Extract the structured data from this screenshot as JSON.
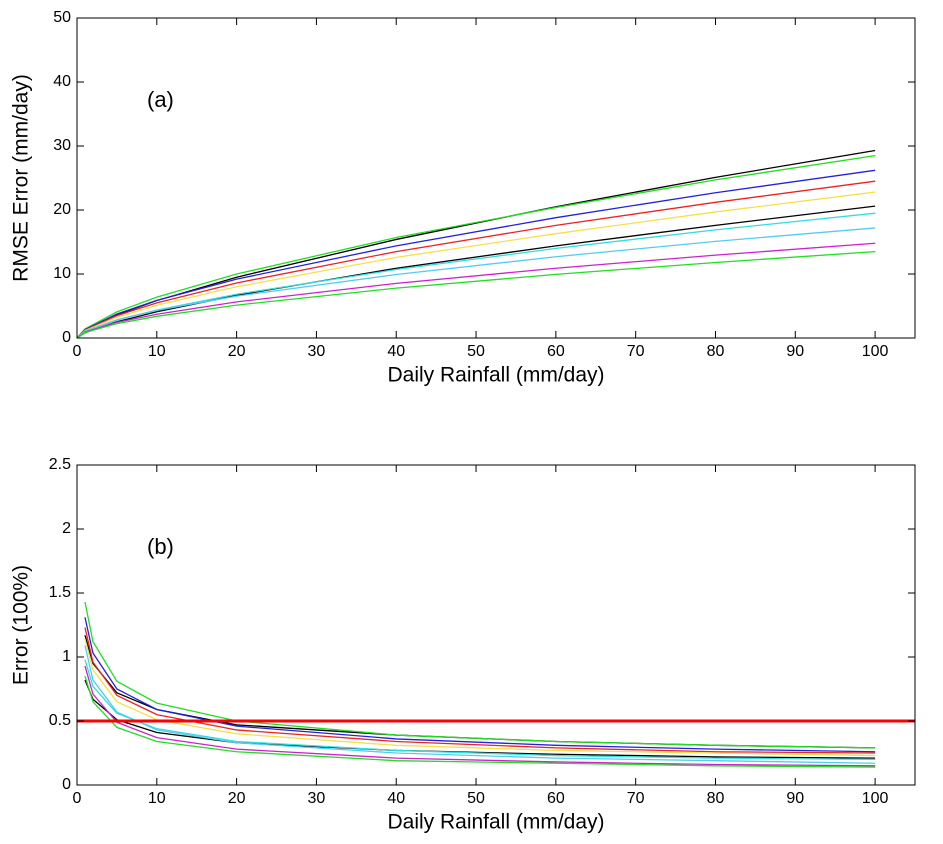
{
  "chart_data": [
    {
      "type": "line",
      "annotation": "(a)",
      "xlabel": "Daily Rainfall (mm/day)",
      "ylabel": "RMSE Error (mm/day)",
      "x": [
        0,
        1,
        5,
        10,
        20,
        40,
        60,
        80,
        100
      ],
      "xlim": [
        0,
        105
      ],
      "xticks": [
        0,
        10,
        20,
        30,
        40,
        50,
        60,
        70,
        80,
        90,
        100
      ],
      "ylim": [
        0,
        50
      ],
      "yticks": [
        0,
        10,
        20,
        30,
        40,
        50
      ],
      "grid": false,
      "series": [
        {
          "color": "#000000",
          "values": [
            0,
            1.17,
            3.6,
            5.85,
            9.5,
            15.4,
            20.5,
            25.1,
            29.3
          ]
        },
        {
          "color": "#22dd22",
          "values": [
            0,
            1.43,
            4.08,
            6.38,
            10.0,
            15.7,
            20.4,
            24.7,
            28.5
          ]
        },
        {
          "color": "#2222dd",
          "values": [
            0,
            1.31,
            3.75,
            5.87,
            9.2,
            14.4,
            18.8,
            22.7,
            26.2
          ]
        },
        {
          "color": "#ee2222",
          "values": [
            0,
            1.23,
            3.5,
            5.49,
            8.6,
            13.5,
            17.6,
            21.2,
            24.5
          ]
        },
        {
          "color": "#f5e04a",
          "values": [
            0,
            1.14,
            3.26,
            5.11,
            8.0,
            12.6,
            16.3,
            19.7,
            22.8
          ]
        },
        {
          "color": "#000000",
          "values": [
            0,
            0.82,
            2.53,
            4.11,
            6.67,
            10.9,
            14.4,
            17.6,
            20.6
          ]
        },
        {
          "color": "#33dddd",
          "values": [
            0,
            0.98,
            2.79,
            4.37,
            6.84,
            10.7,
            14.0,
            16.9,
            19.5
          ]
        },
        {
          "color": "#55ccee",
          "values": [
            0,
            1.08,
            2.86,
            4.32,
            6.55,
            9.92,
            12.7,
            15.1,
            17.2
          ]
        },
        {
          "color": "#cc22cc",
          "values": [
            0,
            0.93,
            2.46,
            3.71,
            5.64,
            8.54,
            10.9,
            12.95,
            14.8
          ]
        },
        {
          "color": "#22dd22",
          "values": [
            0,
            0.85,
            2.24,
            3.39,
            5.14,
            7.79,
            9.94,
            11.8,
            13.5
          ]
        }
      ]
    },
    {
      "type": "line",
      "annotation": "(b)",
      "xlabel": "Daily Rainfall (mm/day)",
      "ylabel": "Error (100%)",
      "x": [
        1,
        2,
        5,
        10,
        20,
        40,
        60,
        80,
        100
      ],
      "xlim": [
        0,
        105
      ],
      "xticks": [
        0,
        10,
        20,
        30,
        40,
        50,
        60,
        70,
        80,
        90,
        100
      ],
      "ylim": [
        0,
        2.5
      ],
      "yticks": [
        0,
        0.5,
        1,
        1.5,
        2,
        2.5
      ],
      "grid": false,
      "hline": 0.5,
      "hline_color": "#ff0000",
      "series": [
        {
          "color": "#000000",
          "values": [
            1.17,
            0.95,
            0.72,
            0.59,
            0.47,
            0.39,
            0.34,
            0.31,
            0.29
          ]
        },
        {
          "color": "#22dd22",
          "values": [
            1.43,
            1.12,
            0.81,
            0.64,
            0.5,
            0.39,
            0.34,
            0.31,
            0.29
          ]
        },
        {
          "color": "#2222dd",
          "values": [
            1.31,
            1.03,
            0.75,
            0.59,
            0.46,
            0.36,
            0.31,
            0.28,
            0.26
          ]
        },
        {
          "color": "#ee2222",
          "values": [
            1.23,
            0.96,
            0.7,
            0.55,
            0.43,
            0.34,
            0.29,
            0.26,
            0.25
          ]
        },
        {
          "color": "#f5e04a",
          "values": [
            1.14,
            0.9,
            0.65,
            0.51,
            0.4,
            0.31,
            0.27,
            0.25,
            0.23
          ]
        },
        {
          "color": "#000000",
          "values": [
            0.82,
            0.67,
            0.51,
            0.41,
            0.33,
            0.27,
            0.24,
            0.22,
            0.21
          ]
        },
        {
          "color": "#33dddd",
          "values": [
            0.98,
            0.77,
            0.56,
            0.44,
            0.34,
            0.27,
            0.23,
            0.21,
            0.2
          ]
        },
        {
          "color": "#55ccee",
          "values": [
            1.09,
            0.82,
            0.57,
            0.43,
            0.33,
            0.25,
            0.21,
            0.19,
            0.17
          ]
        },
        {
          "color": "#cc22cc",
          "values": [
            0.93,
            0.71,
            0.49,
            0.37,
            0.28,
            0.21,
            0.18,
            0.16,
            0.15
          ]
        },
        {
          "color": "#22dd22",
          "values": [
            0.85,
            0.65,
            0.45,
            0.34,
            0.26,
            0.19,
            0.17,
            0.15,
            0.14
          ]
        }
      ]
    }
  ]
}
